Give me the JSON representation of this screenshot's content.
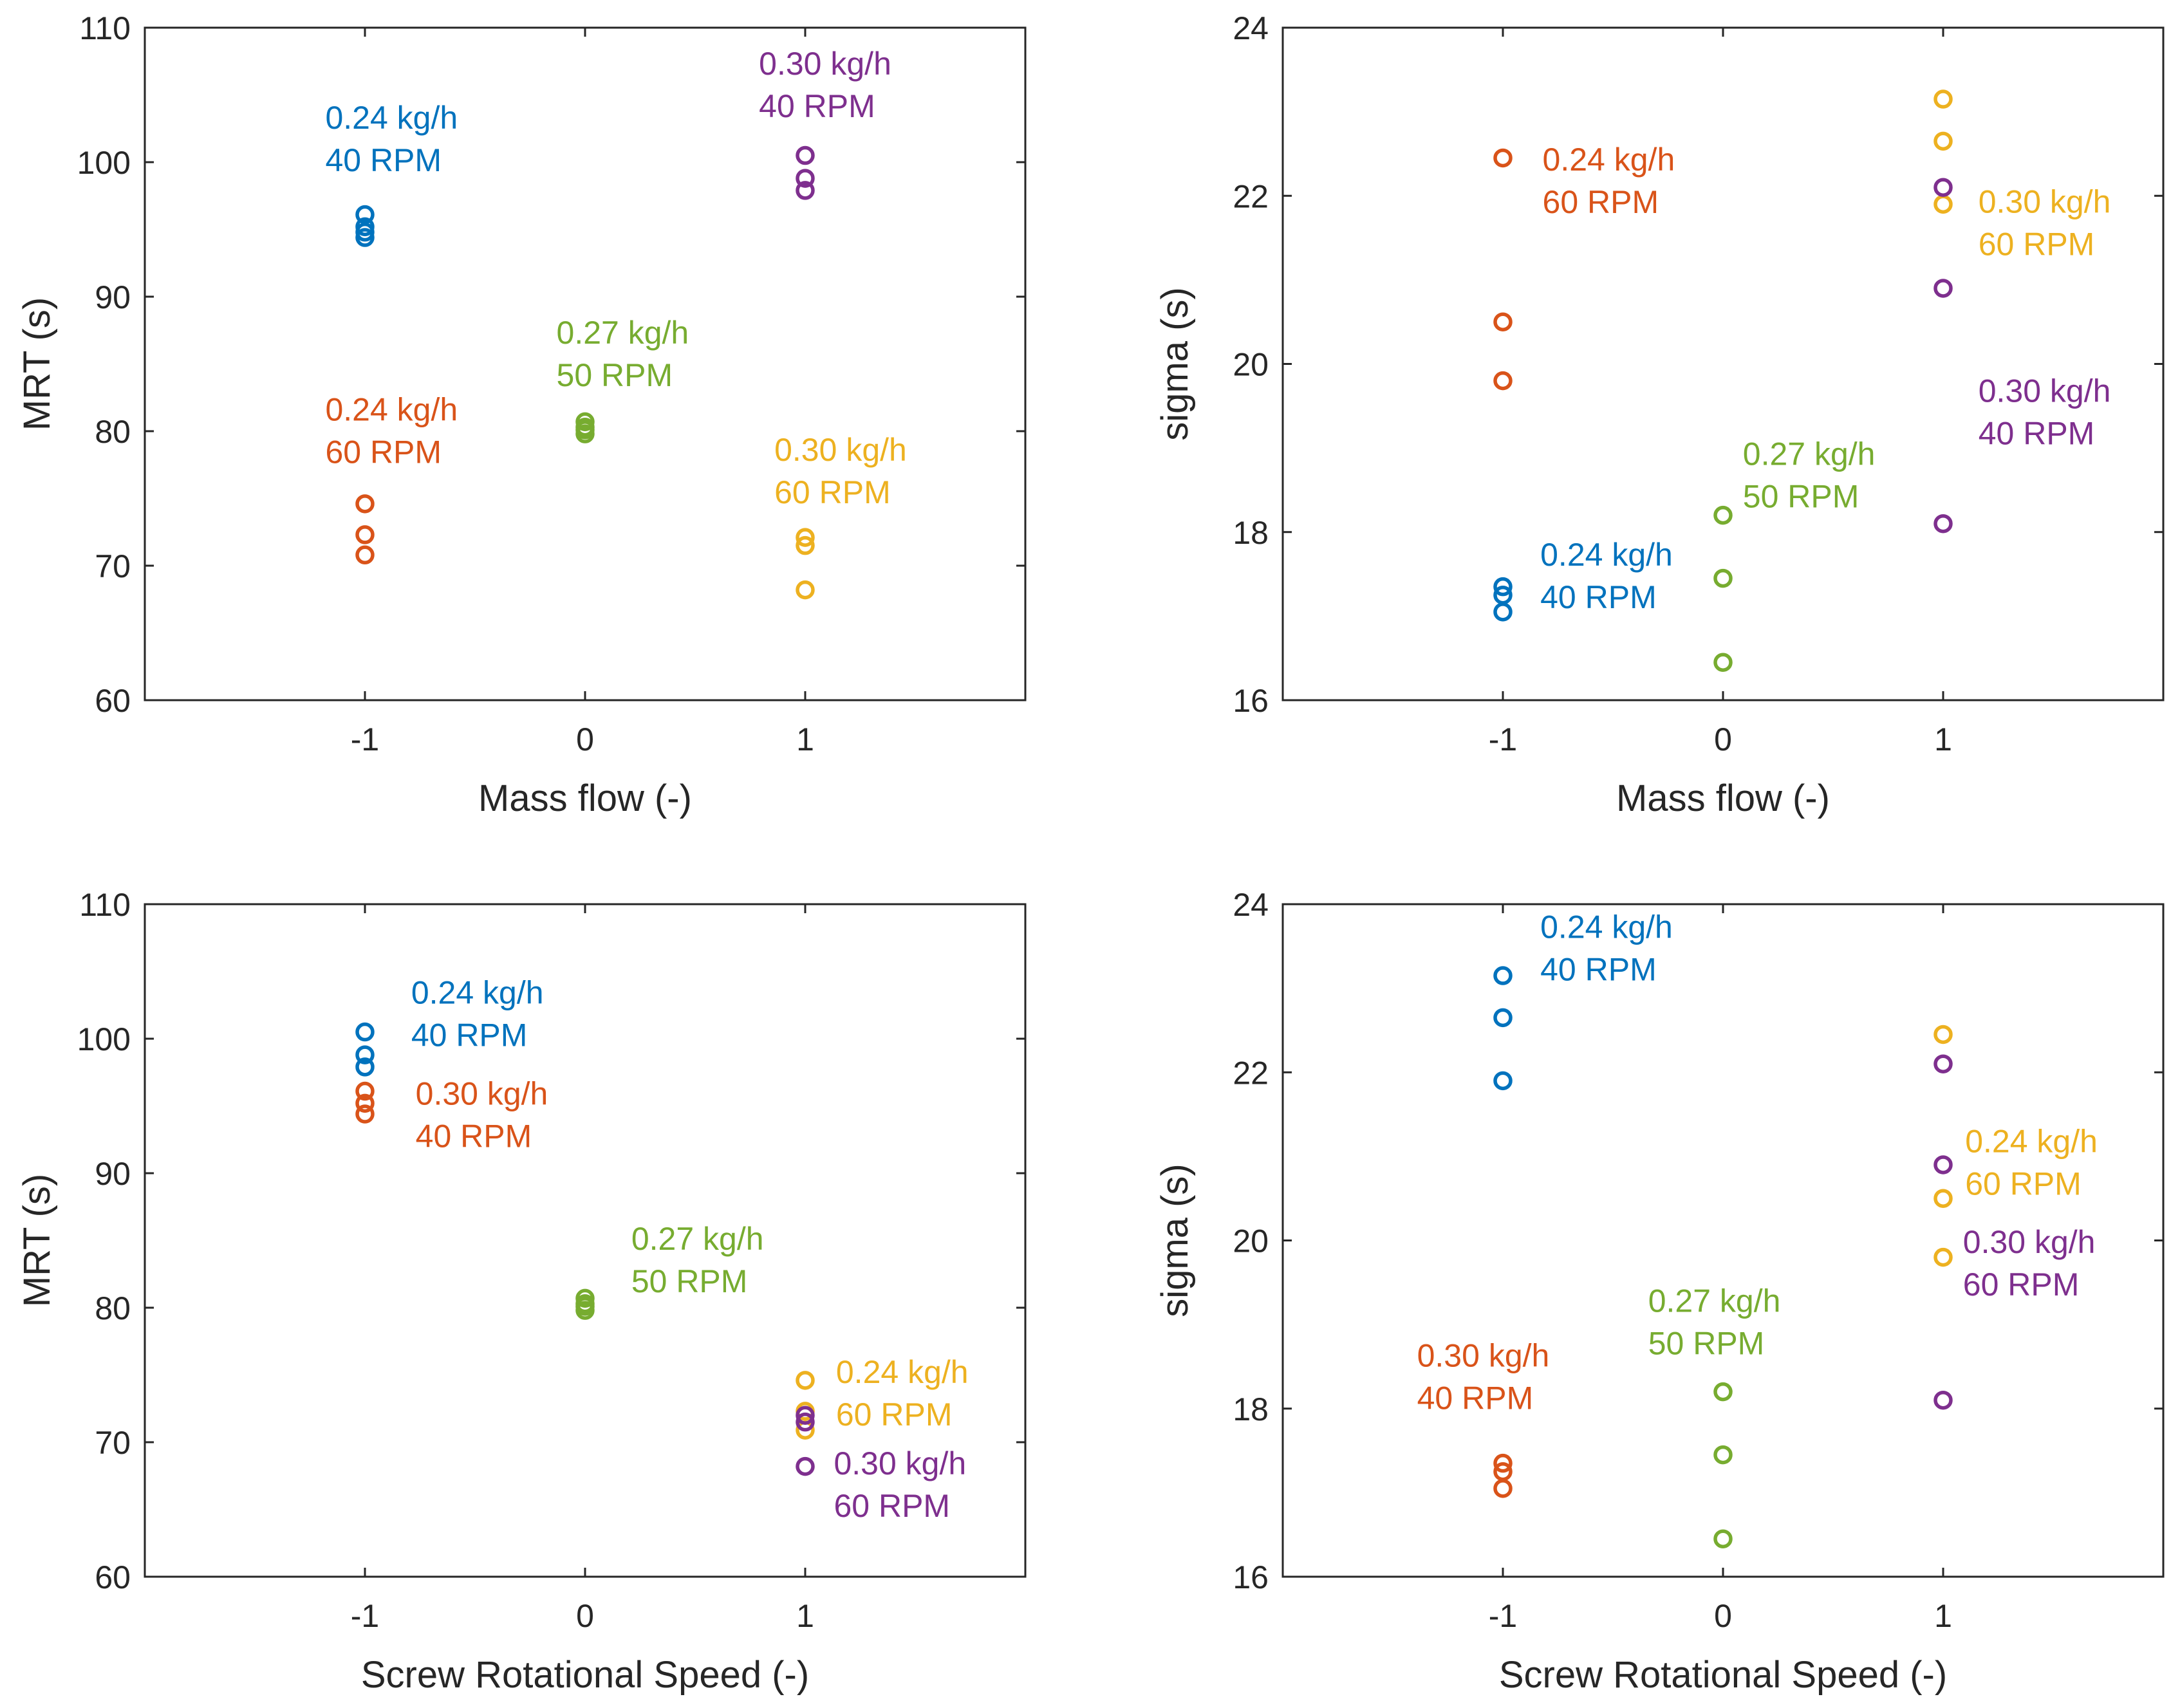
{
  "colors": {
    "blue": "#0072BD",
    "orange": "#D95319",
    "yellow": "#EDB120",
    "purple": "#7E2F8E",
    "green": "#77AC30",
    "axis": "#262626"
  },
  "chart_data": [
    {
      "type": "scatter",
      "title": "",
      "xlabel": "Mass flow (-)",
      "ylabel": "MRT (s)",
      "xlim": [
        -2,
        2
      ],
      "ylim": [
        60,
        110
      ],
      "xticks": [
        -1,
        0,
        1
      ],
      "yticks": [
        60,
        70,
        80,
        90,
        100,
        110
      ],
      "xtick_labels": [
        "-1",
        "0",
        "1"
      ],
      "ytick_labels": [
        "60",
        "70",
        "80",
        "90",
        "100",
        "110"
      ],
      "series": [
        {
          "name": "0.24 kg/h 40 RPM",
          "color": "blue",
          "x": [
            -1,
            -1,
            -1,
            -1
          ],
          "y": [
            96.1,
            95.2,
            94.8,
            94.4
          ]
        },
        {
          "name": "0.24 kg/h 60 RPM",
          "color": "orange",
          "x": [
            -1,
            -1,
            -1
          ],
          "y": [
            74.6,
            72.3,
            70.8
          ]
        },
        {
          "name": "0.27 kg/h 50 RPM",
          "color": "green",
          "x": [
            0,
            0,
            0,
            0
          ],
          "y": [
            80.7,
            80.3,
            80.1,
            79.8
          ]
        },
        {
          "name": "0.30 kg/h 40 RPM",
          "color": "purple",
          "x": [
            1,
            1,
            1
          ],
          "y": [
            100.5,
            98.8,
            97.9
          ]
        },
        {
          "name": "0.30 kg/h 60 RPM",
          "color": "yellow",
          "x": [
            1,
            1,
            1
          ],
          "y": [
            72.1,
            71.5,
            68.2
          ]
        }
      ],
      "annotations": [
        {
          "lines": [
            "0.24 kg/h",
            "40 RPM"
          ],
          "color": "blue",
          "x": -1.18,
          "y": 102.5
        },
        {
          "lines": [
            "0.24 kg/h",
            "60 RPM"
          ],
          "color": "orange",
          "x": -1.18,
          "y": 80.8
        },
        {
          "lines": [
            "0.27 kg/h",
            "50 RPM"
          ],
          "color": "green",
          "x": -0.13,
          "y": 86.5
        },
        {
          "lines": [
            "0.30 kg/h",
            "40 RPM"
          ],
          "color": "purple",
          "x": 0.79,
          "y": 106.5
        },
        {
          "lines": [
            "0.30 kg/h",
            "60 RPM"
          ],
          "color": "yellow",
          "x": 0.86,
          "y": 77.8
        }
      ]
    },
    {
      "type": "scatter",
      "title": "",
      "xlabel": "Mass flow (-)",
      "ylabel": "sigma (s)",
      "xlim": [
        -2,
        2
      ],
      "ylim": [
        16,
        24
      ],
      "xticks": [
        -1,
        0,
        1
      ],
      "yticks": [
        16,
        18,
        20,
        22,
        24
      ],
      "xtick_labels": [
        "-1",
        "0",
        "1"
      ],
      "ytick_labels": [
        "16",
        "18",
        "20",
        "22",
        "24"
      ],
      "series": [
        {
          "name": "0.24 kg/h 60 RPM",
          "color": "orange",
          "x": [
            -1,
            -1,
            -1
          ],
          "y": [
            22.45,
            20.5,
            19.8
          ]
        },
        {
          "name": "0.24 kg/h 40 RPM",
          "color": "blue",
          "x": [
            -1,
            -1,
            -1
          ],
          "y": [
            17.35,
            17.25,
            17.05
          ]
        },
        {
          "name": "0.27 kg/h 50 RPM",
          "color": "green",
          "x": [
            0,
            0,
            0
          ],
          "y": [
            18.2,
            17.45,
            16.45
          ]
        },
        {
          "name": "0.30 kg/h 60 RPM",
          "color": "yellow",
          "x": [
            1,
            1,
            1
          ],
          "y": [
            23.15,
            22.65,
            21.9
          ]
        },
        {
          "name": "0.30 kg/h 40 RPM",
          "color": "purple",
          "x": [
            1,
            1,
            1
          ],
          "y": [
            22.1,
            20.9,
            18.1
          ]
        }
      ],
      "annotations": [
        {
          "lines": [
            "0.24 kg/h",
            "60 RPM"
          ],
          "color": "orange",
          "x": -0.82,
          "y": 22.3
        },
        {
          "lines": [
            "0.24 kg/h",
            "40 RPM"
          ],
          "color": "blue",
          "x": -0.83,
          "y": 17.6
        },
        {
          "lines": [
            "0.27 kg/h",
            "50 RPM"
          ],
          "color": "green",
          "x": 0.09,
          "y": 18.8
        },
        {
          "lines": [
            "0.30 kg/h",
            "60 RPM"
          ],
          "color": "yellow",
          "x": 1.16,
          "y": 21.8
        },
        {
          "lines": [
            "0.30 kg/h",
            "40 RPM"
          ],
          "color": "purple",
          "x": 1.16,
          "y": 19.55
        }
      ]
    },
    {
      "type": "scatter",
      "title": "",
      "xlabel": "Screw Rotational Speed (-)",
      "ylabel": "MRT (s)",
      "xlim": [
        -2,
        2
      ],
      "ylim": [
        60,
        110
      ],
      "xticks": [
        -1,
        0,
        1
      ],
      "yticks": [
        60,
        70,
        80,
        90,
        100,
        110
      ],
      "xtick_labels": [
        "-1",
        "0",
        "1"
      ],
      "ytick_labels": [
        "60",
        "70",
        "80",
        "90",
        "100",
        "110"
      ],
      "series": [
        {
          "name": "0.24 kg/h 40 RPM",
          "color": "blue",
          "x": [
            -1,
            -1,
            -1
          ],
          "y": [
            100.5,
            98.8,
            97.9
          ]
        },
        {
          "name": "0.30 kg/h 40 RPM",
          "color": "orange",
          "x": [
            -1,
            -1,
            -1
          ],
          "y": [
            96.1,
            95.2,
            94.4
          ]
        },
        {
          "name": "0.27 kg/h 50 RPM",
          "color": "green",
          "x": [
            0,
            0,
            0,
            0
          ],
          "y": [
            80.7,
            80.3,
            80.1,
            79.8
          ]
        },
        {
          "name": "0.24 kg/h 60 RPM",
          "color": "yellow",
          "x": [
            1,
            1,
            1
          ],
          "y": [
            74.6,
            72.3,
            70.9
          ]
        },
        {
          "name": "0.30 kg/h 60 RPM",
          "color": "purple",
          "x": [
            1,
            1,
            1
          ],
          "y": [
            72.0,
            71.5,
            68.2
          ]
        }
      ],
      "annotations": [
        {
          "lines": [
            "0.24 kg/h",
            "40 RPM"
          ],
          "color": "blue",
          "x": -0.79,
          "y": 102.6
        },
        {
          "lines": [
            "0.30 kg/h",
            "40 RPM"
          ],
          "color": "orange",
          "x": -0.77,
          "y": 95.1
        },
        {
          "lines": [
            "0.27 kg/h",
            "50 RPM"
          ],
          "color": "green",
          "x": 0.21,
          "y": 84.3
        },
        {
          "lines": [
            "0.24 kg/h",
            "60 RPM"
          ],
          "color": "yellow",
          "x": 1.14,
          "y": 74.4
        },
        {
          "lines": [
            "0.30 kg/h",
            "60 RPM"
          ],
          "color": "purple",
          "x": 1.13,
          "y": 67.6
        }
      ]
    },
    {
      "type": "scatter",
      "title": "",
      "xlabel": "Screw Rotational Speed (-)",
      "ylabel": "sigma (s)",
      "xlim": [
        -2,
        2
      ],
      "ylim": [
        16,
        24
      ],
      "xticks": [
        -1,
        0,
        1
      ],
      "yticks": [
        16,
        18,
        20,
        22,
        24
      ],
      "xtick_labels": [
        "-1",
        "0",
        "1"
      ],
      "ytick_labels": [
        "16",
        "18",
        "20",
        "22",
        "24"
      ],
      "series": [
        {
          "name": "0.24 kg/h 40 RPM",
          "color": "blue",
          "x": [
            -1,
            -1,
            -1
          ],
          "y": [
            23.15,
            22.65,
            21.9
          ]
        },
        {
          "name": "0.30 kg/h 40 RPM",
          "color": "orange",
          "x": [
            -1,
            -1,
            -1
          ],
          "y": [
            17.35,
            17.25,
            17.05
          ]
        },
        {
          "name": "0.27 kg/h 50 RPM",
          "color": "green",
          "x": [
            0,
            0,
            0
          ],
          "y": [
            18.2,
            17.45,
            16.45
          ]
        },
        {
          "name": "0.24 kg/h 60 RPM",
          "color": "yellow",
          "x": [
            1,
            1,
            1
          ],
          "y": [
            22.45,
            20.5,
            19.8
          ]
        },
        {
          "name": "0.30 kg/h 60 RPM",
          "color": "purple",
          "x": [
            1,
            1,
            1
          ],
          "y": [
            22.1,
            20.9,
            18.1
          ]
        }
      ],
      "annotations": [
        {
          "lines": [
            "0.24 kg/h",
            "40 RPM"
          ],
          "color": "blue",
          "x": -0.83,
          "y": 23.6
        },
        {
          "lines": [
            "0.30 kg/h",
            "40 RPM"
          ],
          "color": "orange",
          "x": -1.39,
          "y": 18.5
        },
        {
          "lines": [
            "0.27 kg/h",
            "50 RPM"
          ],
          "color": "green",
          "x": -0.34,
          "y": 19.15
        },
        {
          "lines": [
            "0.24 kg/h",
            "60 RPM"
          ],
          "color": "yellow",
          "x": 1.1,
          "y": 21.05
        },
        {
          "lines": [
            "0.30 kg/h",
            "60 RPM"
          ],
          "color": "purple",
          "x": 1.09,
          "y": 19.85
        }
      ]
    }
  ]
}
